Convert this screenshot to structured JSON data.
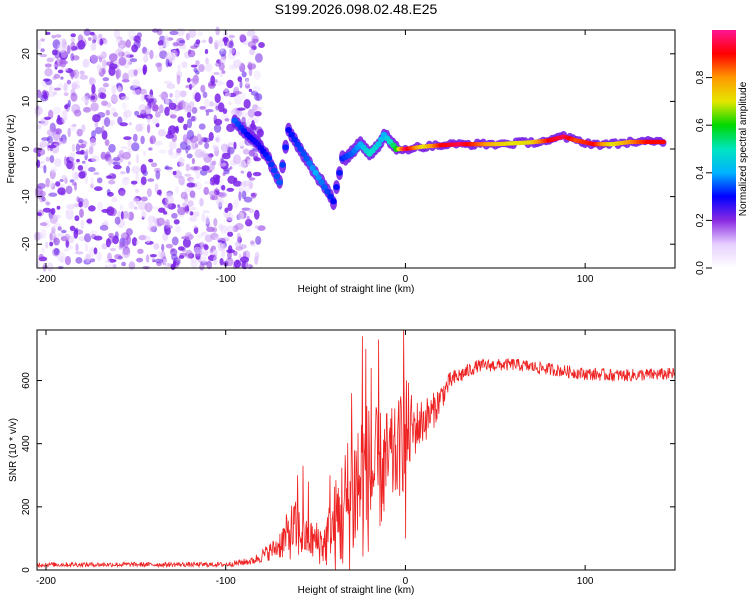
{
  "figure": {
    "title": "S199.2026.098.02.48.E25"
  },
  "chart_data": [
    {
      "type": "heatmap",
      "panel": "spectrogram",
      "xlabel": "Height of straight line (km)",
      "ylabel": "Frequency (Hz)",
      "xlim": [
        -205,
        150
      ],
      "ylim": [
        -25,
        25
      ],
      "xticks": [
        -200,
        -100,
        0,
        100
      ],
      "xtick_labels": [
        "-200",
        "-100",
        "0",
        "100"
      ],
      "yticks": [
        -20,
        -10,
        0,
        10,
        20
      ],
      "ytick_labels": [
        "-20",
        "-10",
        "0",
        "10",
        "20"
      ],
      "noise_region": {
        "x_range": [
          -205,
          -88
        ],
        "freq_range": [
          -25,
          25
        ],
        "typical_amplitude": 0.12
      },
      "ridge": [
        {
          "x": -95,
          "freq": 6,
          "amp": 0.35
        },
        {
          "x": -88,
          "freq": 3,
          "amp": 0.3
        },
        {
          "x": -82,
          "freq": 1,
          "amp": 0.28
        },
        {
          "x": -76,
          "freq": -2,
          "amp": 0.32
        },
        {
          "x": -70,
          "freq": -7,
          "amp": 0.35
        },
        {
          "x": -65,
          "freq": 4,
          "amp": 0.3
        },
        {
          "x": -60,
          "freq": 1,
          "amp": 0.33
        },
        {
          "x": -55,
          "freq": -2,
          "amp": 0.35
        },
        {
          "x": -50,
          "freq": -5,
          "amp": 0.4
        },
        {
          "x": -45,
          "freq": -8,
          "amp": 0.35
        },
        {
          "x": -40,
          "freq": -11,
          "amp": 0.3
        },
        {
          "x": -35,
          "freq": -2,
          "amp": 0.32
        },
        {
          "x": -30,
          "freq": -1,
          "amp": 0.35
        },
        {
          "x": -25,
          "freq": 1,
          "amp": 0.4
        },
        {
          "x": -20,
          "freq": -1,
          "amp": 0.5
        },
        {
          "x": -15,
          "freq": 1,
          "amp": 0.45
        },
        {
          "x": -12,
          "freq": 3,
          "amp": 0.4
        },
        {
          "x": -5,
          "freq": 0,
          "amp": 0.6
        },
        {
          "x": 0,
          "freq": 0,
          "amp": 0.95
        },
        {
          "x": 10,
          "freq": 0.5,
          "amp": 0.7
        },
        {
          "x": 20,
          "freq": 0.8,
          "amp": 0.9
        },
        {
          "x": 30,
          "freq": 1,
          "amp": 0.95
        },
        {
          "x": 40,
          "freq": 1,
          "amp": 0.85
        },
        {
          "x": 50,
          "freq": 1,
          "amp": 0.75
        },
        {
          "x": 60,
          "freq": 1.2,
          "amp": 0.7
        },
        {
          "x": 70,
          "freq": 1.4,
          "amp": 0.72
        },
        {
          "x": 80,
          "freq": 1.8,
          "amp": 0.9
        },
        {
          "x": 88,
          "freq": 2.6,
          "amp": 0.95
        },
        {
          "x": 95,
          "freq": 1.8,
          "amp": 0.85
        },
        {
          "x": 105,
          "freq": 1,
          "amp": 0.9
        },
        {
          "x": 115,
          "freq": 1,
          "amp": 0.7
        },
        {
          "x": 125,
          "freq": 1.5,
          "amp": 0.8
        },
        {
          "x": 135,
          "freq": 1.5,
          "amp": 0.9
        },
        {
          "x": 145,
          "freq": 1.5,
          "amp": 0.9
        }
      ],
      "colorbar": {
        "label": "Normalized spectral amplitude",
        "range": [
          0,
          1
        ],
        "ticks": [
          0.0,
          0.2,
          0.4,
          0.6,
          0.8
        ],
        "tick_labels": [
          "0.0",
          "0.2",
          "0.4",
          "0.6",
          "0.8"
        ],
        "colors": [
          "#ffffff",
          "#e6cfff",
          "#8a2be2",
          "#0000ff",
          "#00b3ff",
          "#00e5c0",
          "#00d800",
          "#e6e600",
          "#ff9900",
          "#ff0000",
          "#ff1493"
        ]
      }
    },
    {
      "type": "line",
      "panel": "snr",
      "xlabel": "Height of straight line (km)",
      "ylabel": "SNR (10 * v/v)",
      "xlim": [
        -205,
        150
      ],
      "ylim": [
        0,
        760
      ],
      "xticks": [
        -200,
        -100,
        0,
        100
      ],
      "xtick_labels": [
        "-200",
        "-100",
        "0",
        "100"
      ],
      "yticks": [
        0,
        200,
        400,
        600
      ],
      "ytick_labels": [
        "0",
        "200",
        "400",
        "600"
      ],
      "color": "#ee2222",
      "envelope": [
        {
          "x": -205,
          "base": 15,
          "spread": 15
        },
        {
          "x": -100,
          "base": 15,
          "spread": 15
        },
        {
          "x": -85,
          "base": 25,
          "spread": 25
        },
        {
          "x": -72,
          "base": 60,
          "spread": 70
        },
        {
          "x": -62,
          "base": 100,
          "spread": 200
        },
        {
          "x": -55,
          "base": 80,
          "spread": 120
        },
        {
          "x": -45,
          "base": 60,
          "spread": 150
        },
        {
          "x": -35,
          "base": 120,
          "spread": 400
        },
        {
          "x": -25,
          "base": 200,
          "spread": 550
        },
        {
          "x": -15,
          "base": 250,
          "spread": 400
        },
        {
          "x": -5,
          "base": 320,
          "spread": 300
        },
        {
          "x": 0,
          "base": 380,
          "spread": 380
        },
        {
          "x": 5,
          "base": 420,
          "spread": 180
        },
        {
          "x": 15,
          "base": 480,
          "spread": 120
        },
        {
          "x": 25,
          "base": 590,
          "spread": 60
        },
        {
          "x": 40,
          "base": 640,
          "spread": 40
        },
        {
          "x": 60,
          "base": 645,
          "spread": 40
        },
        {
          "x": 80,
          "base": 630,
          "spread": 40
        },
        {
          "x": 100,
          "base": 615,
          "spread": 40
        },
        {
          "x": 120,
          "base": 610,
          "spread": 40
        },
        {
          "x": 150,
          "base": 615,
          "spread": 40
        }
      ],
      "peaks": [
        {
          "x": -60,
          "value": 300
        },
        {
          "x": -57,
          "value": 330
        },
        {
          "x": -54,
          "value": 280
        },
        {
          "x": -42,
          "value": 300
        },
        {
          "x": -30,
          "value": 560
        },
        {
          "x": -24,
          "value": 740
        },
        {
          "x": -22,
          "value": 700
        },
        {
          "x": -19,
          "value": 640
        },
        {
          "x": -15,
          "value": 730
        },
        {
          "x": -8,
          "value": 480
        },
        {
          "x": -1,
          "value": 760
        },
        {
          "x": 0,
          "value": 100
        }
      ]
    }
  ]
}
